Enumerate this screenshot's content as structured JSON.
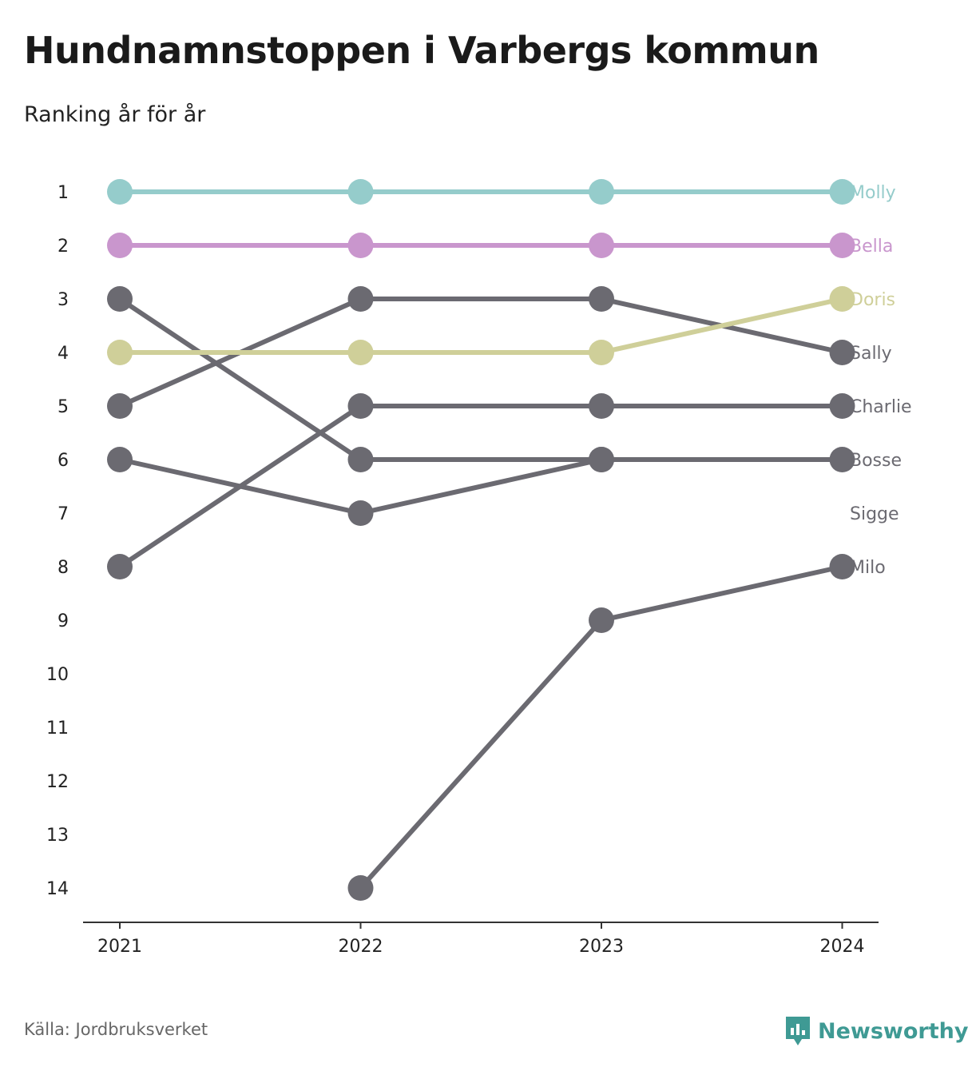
{
  "title": "Hundnamnstoppen i Varbergs kommun",
  "subtitle": "Ranking år för år",
  "source": "Källa: Jordbruksverket",
  "brand": {
    "name": "Newsworthy",
    "logo_icon": "newsworthy-logo-icon",
    "color": "#3f9a94"
  },
  "chart_data": {
    "type": "line",
    "chart_kind": "bump",
    "x": [
      "2021",
      "2022",
      "2023",
      "2024"
    ],
    "y_ticks": [
      1,
      2,
      3,
      4,
      5,
      6,
      7,
      8,
      9,
      10,
      11,
      12,
      13,
      14
    ],
    "y_inverted": true,
    "ylim": [
      1,
      14
    ],
    "grid": false,
    "series": [
      {
        "name": "Molly",
        "color": "#95cccb",
        "values": [
          1,
          1,
          1,
          1
        ]
      },
      {
        "name": "Bella",
        "color": "#c996cd",
        "values": [
          2,
          2,
          2,
          2
        ]
      },
      {
        "name": "Doris",
        "color": "#cfcf99",
        "values": [
          4,
          4,
          4,
          3
        ]
      },
      {
        "name": "Sally",
        "color": "#6b6a71",
        "values": [
          5,
          3,
          3,
          4
        ]
      },
      {
        "name": "Charlie",
        "color": "#6b6a71",
        "values": [
          8,
          5,
          5,
          5
        ]
      },
      {
        "name": "Bosse",
        "color": "#6b6a71",
        "values": [
          3,
          6,
          6,
          6
        ]
      },
      {
        "name": "Sigge",
        "color": "#6b6a71",
        "values": [
          6,
          7,
          6,
          null
        ],
        "label_rank": 7
      },
      {
        "name": "Milo",
        "color": "#6b6a71",
        "values": [
          null,
          14,
          9,
          8
        ]
      }
    ]
  }
}
